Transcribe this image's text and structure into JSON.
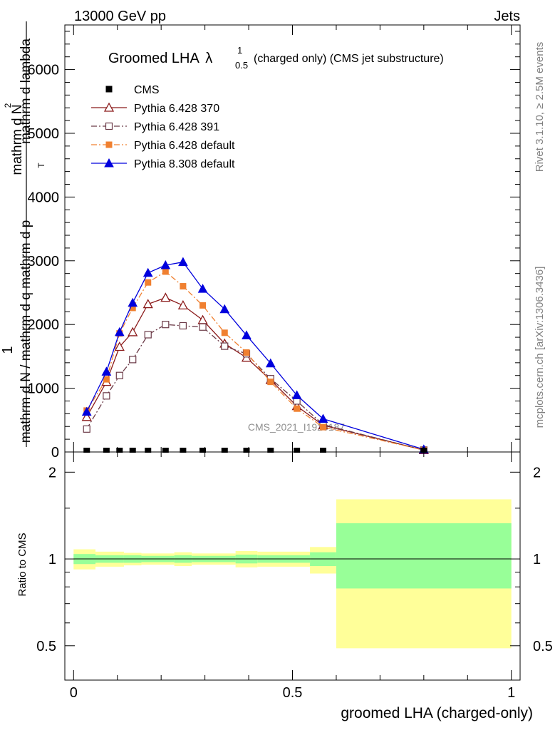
{
  "header": {
    "left": "13000 GeV pp",
    "right": "Jets"
  },
  "side_labels": {
    "rivet": "Rivet 3.1.10, ≥ 2.5M events",
    "mcplots": "mcplots.cern.ch [arXiv:1306.3436]"
  },
  "watermark": "CMS_2021_I1920187",
  "chart_data": [
    {
      "type": "line",
      "title_main": "Groomed LHA",
      "title_lambda": "λ",
      "title_sup": "1",
      "title_sub": "0.5",
      "title_rest": "(charged only) (CMS jet substructure)",
      "ylabel_num": "1",
      "ylabel_den": "mathrm d N / mathrm d q mathrm d p",
      "ylabel_den_sub": "T",
      "ylabel_den_rest": "mathrm d lambda",
      "ylabel_numer_dN": "mathrm d N",
      "ylabel_numer_2": "2",
      "xlim": [
        -0.02,
        1.02
      ],
      "ylim": [
        0,
        6700
      ],
      "yticks": [
        0,
        1000,
        2000,
        3000,
        4000,
        5000,
        6000
      ],
      "ytick_labels": [
        "0",
        "1000",
        "2000",
        "3000",
        "4000",
        "5000",
        "6000"
      ],
      "legend_position": "top-left",
      "x": [
        0.03,
        0.075,
        0.105,
        0.135,
        0.17,
        0.21,
        0.25,
        0.295,
        0.345,
        0.395,
        0.45,
        0.51,
        0.57,
        0.8
      ],
      "series": [
        {
          "name": "CMS",
          "color": "#000000",
          "marker": "square-filled",
          "dash": "none",
          "values": [
            0,
            0,
            0,
            0,
            0,
            0,
            0,
            0,
            0,
            0,
            0,
            0,
            0,
            0
          ]
        },
        {
          "name": "Pythia 6.428 370",
          "color": "#8b1a1a",
          "marker": "triangle-open",
          "dash": "solid",
          "values": [
            550,
            1100,
            1650,
            1880,
            2320,
            2420,
            2300,
            2070,
            1700,
            1480,
            1130,
            720,
            420,
            30
          ]
        },
        {
          "name": "Pythia 6.428 391",
          "color": "#6b3a47",
          "marker": "square-open",
          "dash": "dashdot",
          "values": [
            360,
            880,
            1200,
            1450,
            1840,
            2000,
            1980,
            1960,
            1660,
            1540,
            1150,
            800,
            430,
            30
          ]
        },
        {
          "name": "Pythia 6.428 default",
          "color": "#f08030",
          "marker": "square-filled",
          "dash": "dashdot",
          "values": [
            650,
            1140,
            1860,
            2260,
            2660,
            2830,
            2600,
            2300,
            1870,
            1560,
            1100,
            680,
            390,
            30
          ]
        },
        {
          "name": "Pythia 8.308 default",
          "color": "#0000dd",
          "marker": "triangle-filled",
          "dash": "solid",
          "values": [
            630,
            1260,
            1880,
            2340,
            2810,
            2930,
            2980,
            2560,
            2240,
            1830,
            1390,
            890,
            520,
            40
          ]
        }
      ]
    },
    {
      "type": "area",
      "ylabel": "Ratio to CMS",
      "xlabel": "groomed LHA (charged-only)",
      "xlim": [
        -0.02,
        1.02
      ],
      "ylim": [
        0.38,
        2.35
      ],
      "xticks": [
        0,
        0.5,
        1
      ],
      "xtick_labels": [
        "0",
        "0.5",
        "1"
      ],
      "yticks": [
        0.5,
        1,
        2
      ],
      "ytick_labels": [
        "0.5",
        "1",
        "2"
      ],
      "reference": 1,
      "bins": [
        {
          "x0": 0.0,
          "x1": 0.05,
          "inner": [
            0.96,
            1.04
          ],
          "outer": [
            0.92,
            1.08
          ]
        },
        {
          "x0": 0.05,
          "x1": 0.115,
          "inner": [
            0.97,
            1.03
          ],
          "outer": [
            0.94,
            1.06
          ]
        },
        {
          "x0": 0.115,
          "x1": 0.155,
          "inner": [
            0.97,
            1.03
          ],
          "outer": [
            0.95,
            1.05
          ]
        },
        {
          "x0": 0.155,
          "x1": 0.23,
          "inner": [
            0.975,
            1.025
          ],
          "outer": [
            0.955,
            1.045
          ]
        },
        {
          "x0": 0.23,
          "x1": 0.27,
          "inner": [
            0.97,
            1.03
          ],
          "outer": [
            0.945,
            1.055
          ]
        },
        {
          "x0": 0.27,
          "x1": 0.37,
          "inner": [
            0.975,
            1.025
          ],
          "outer": [
            0.955,
            1.045
          ]
        },
        {
          "x0": 0.37,
          "x1": 0.42,
          "inner": [
            0.965,
            1.035
          ],
          "outer": [
            0.935,
            1.065
          ]
        },
        {
          "x0": 0.42,
          "x1": 0.54,
          "inner": [
            0.97,
            1.03
          ],
          "outer": [
            0.94,
            1.06
          ]
        },
        {
          "x0": 0.54,
          "x1": 0.6,
          "inner": [
            0.945,
            1.055
          ],
          "outer": [
            0.89,
            1.1
          ]
        },
        {
          "x0": 0.6,
          "x1": 1.0,
          "inner": [
            0.79,
            1.33
          ],
          "outer": [
            0.49,
            1.61
          ]
        }
      ]
    }
  ],
  "colors": {
    "inner_band": "#98ff98",
    "outer_band": "#ffff99"
  }
}
